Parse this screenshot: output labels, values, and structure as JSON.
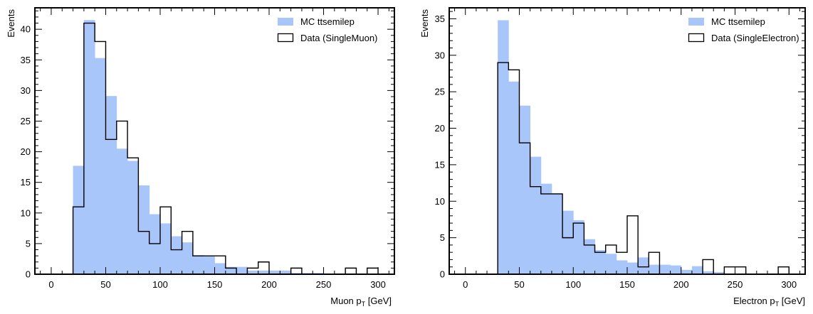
{
  "colors": {
    "mc_fill": "#a8c6fa",
    "data_line": "#000000",
    "background": "#ffffff"
  },
  "chart_data": [
    {
      "type": "histogram",
      "ylabel": "Events",
      "xlabel": {
        "prefix": "Muon p",
        "sub": "T",
        "suffix": " [GeV]"
      },
      "xlim": [
        -15,
        315
      ],
      "ylim": [
        0,
        43.5
      ],
      "xticks": [
        0,
        50,
        100,
        150,
        200,
        250,
        300
      ],
      "yticks": [
        0,
        5,
        10,
        15,
        20,
        25,
        30,
        35,
        40
      ],
      "bin_edges": [
        0,
        10,
        20,
        30,
        40,
        50,
        60,
        70,
        80,
        90,
        100,
        110,
        120,
        130,
        140,
        150,
        160,
        170,
        180,
        190,
        200,
        210,
        220,
        230,
        240,
        250,
        260,
        270,
        280,
        290,
        300
      ],
      "series": [
        {
          "name": "MC ttsemilep",
          "style": "filled",
          "values": [
            0,
            0,
            17.7,
            41.5,
            35.3,
            29.1,
            20.5,
            18.5,
            14.5,
            9.8,
            8.3,
            6.2,
            5.2,
            3.1,
            2.9,
            1.8,
            1.2,
            1.2,
            0.6,
            0.6,
            0.6,
            0.6,
            0.2,
            0.2,
            0.2,
            0,
            0,
            0,
            0,
            0
          ]
        },
        {
          "name": "Data (SingleMuon)",
          "style": "step",
          "values": [
            0,
            0,
            11,
            41,
            38,
            22,
            25,
            19,
            7,
            5,
            11,
            4,
            7,
            3,
            3,
            3,
            1,
            0,
            1,
            2,
            0,
            0,
            1,
            0,
            0,
            0,
            0,
            1,
            0,
            1
          ]
        }
      ],
      "legend": "top-right"
    },
    {
      "type": "histogram",
      "ylabel": "Events",
      "xlabel": {
        "prefix": "Electron p",
        "sub": "T",
        "suffix": " [GeV]"
      },
      "xlim": [
        -15,
        315
      ],
      "ylim": [
        0,
        36.5
      ],
      "xticks": [
        0,
        50,
        100,
        150,
        200,
        250,
        300
      ],
      "yticks": [
        0,
        5,
        10,
        15,
        20,
        25,
        30,
        35
      ],
      "bin_edges": [
        0,
        10,
        20,
        30,
        40,
        50,
        60,
        70,
        80,
        90,
        100,
        110,
        120,
        130,
        140,
        150,
        160,
        170,
        180,
        190,
        200,
        210,
        220,
        230,
        240,
        250,
        260,
        270,
        280,
        290,
        300
      ],
      "series": [
        {
          "name": "MC ttsemilep",
          "style": "filled",
          "values": [
            0,
            0,
            0,
            34.8,
            26.4,
            23.1,
            16.1,
            12.4,
            11.1,
            8.7,
            7.4,
            4.8,
            3.3,
            2.8,
            1.9,
            1.6,
            2.3,
            1.3,
            1.3,
            1.2,
            0.6,
            1.1,
            0.4,
            0.3,
            0,
            0,
            0,
            0,
            0,
            0
          ]
        },
        {
          "name": "Data (SingleElectron)",
          "style": "step",
          "values": [
            0,
            0,
            0,
            29,
            28,
            18,
            12,
            11,
            11,
            5,
            7,
            4,
            3,
            4,
            3,
            8,
            1,
            3,
            0,
            0,
            0,
            0,
            2,
            0,
            1,
            1,
            0,
            0,
            0,
            1
          ]
        }
      ],
      "legend": "top-right"
    }
  ]
}
